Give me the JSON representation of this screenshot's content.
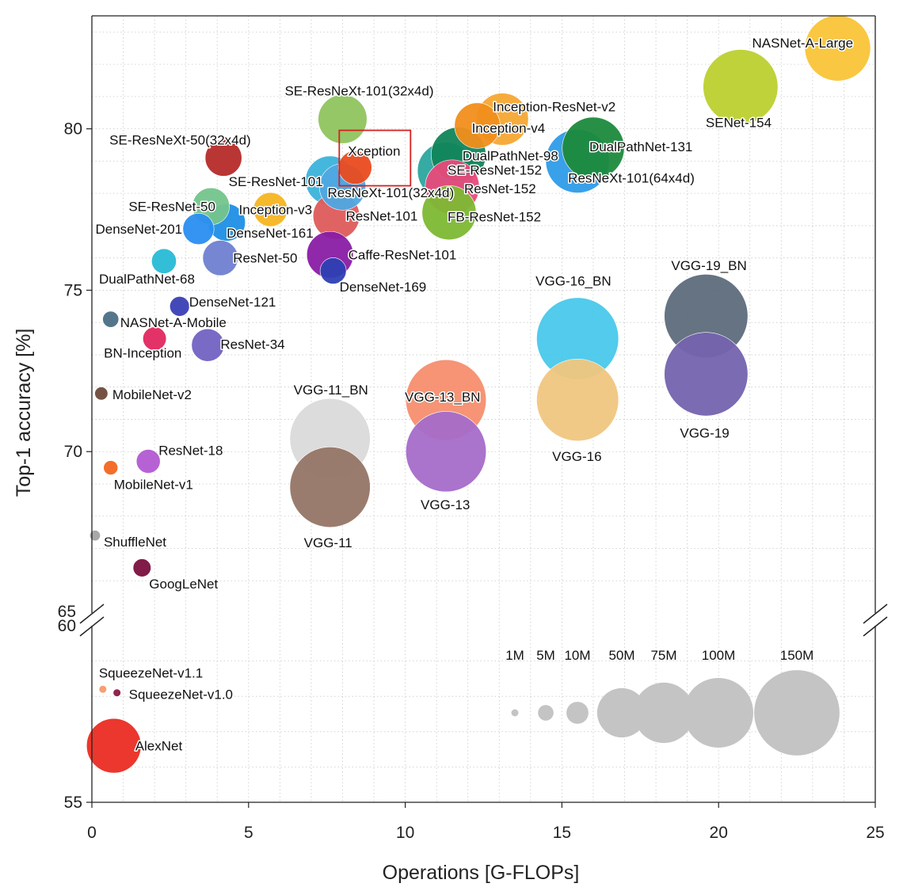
{
  "chart_data": {
    "type": "scatter",
    "xlabel": "Operations [G-FLOPs]",
    "ylabel": "Top-1 accuracy [%]",
    "xlim": [
      0,
      25
    ],
    "ylim_upper": [
      65,
      83.5
    ],
    "ylim_lower": [
      55,
      60
    ],
    "x_ticks": [
      "0",
      "5",
      "10",
      "15",
      "20",
      "25"
    ],
    "y_ticks_upper": [
      "70",
      "75",
      "80"
    ],
    "y_ticks_lower": [
      "55"
    ],
    "y_break_labels": [
      "65",
      "60"
    ],
    "grid": true,
    "highlight": "Xception",
    "size_legend": [
      {
        "label": "1M",
        "params": 1
      },
      {
        "label": "5M",
        "params": 5
      },
      {
        "label": "10M",
        "params": 10
      },
      {
        "label": "50M",
        "params": 50
      },
      {
        "label": "75M",
        "params": 75
      },
      {
        "label": "100M",
        "params": 100
      },
      {
        "label": "150M",
        "params": 150
      }
    ],
    "points": [
      {
        "name": "NASNet-A-Large",
        "x": 23.8,
        "y": 82.5,
        "params": 88.9,
        "color": "#F9C437"
      },
      {
        "name": "SENet-154",
        "x": 20.7,
        "y": 81.3,
        "params": 115.1,
        "color": "#BCD02F"
      },
      {
        "name": "SE-ResNeXt-101(32x4d)",
        "x": 8.0,
        "y": 80.3,
        "params": 49,
        "color": "#8FC45F"
      },
      {
        "name": "Inception-ResNet-v2",
        "x": 13.1,
        "y": 80.3,
        "params": 55.8,
        "color": "#F5A833"
      },
      {
        "name": "Inception-v4",
        "x": 12.3,
        "y": 80.1,
        "params": 42.7,
        "color": "#F18E1B"
      },
      {
        "name": "DualPathNet-131",
        "x": 16.0,
        "y": 79.4,
        "params": 79.3,
        "color": "#1C8A3C"
      },
      {
        "name": "DualPathNet-98",
        "x": 11.7,
        "y": 79.2,
        "params": 61.6,
        "color": "#11855A"
      },
      {
        "name": "SE-ResNeXt-50(32x4d)",
        "x": 4.2,
        "y": 79.1,
        "params": 27.6,
        "color": "#B52B2A"
      },
      {
        "name": "ResNeXt-101(64x4d)",
        "x": 15.5,
        "y": 79.0,
        "params": 83.5,
        "color": "#2E9CE8"
      },
      {
        "name": "Xception",
        "x": 8.4,
        "y": 78.8,
        "params": 22.9,
        "color": "#EA4B1F"
      },
      {
        "name": "SE-ResNet-152",
        "x": 11.3,
        "y": 78.7,
        "params": 66.8,
        "color": "#2AA79F"
      },
      {
        "name": "SE-ResNet-101",
        "x": 7.6,
        "y": 78.4,
        "params": 49.3,
        "color": "#3BB3DA"
      },
      {
        "name": "ResNeXt-101(32x4d)",
        "x": 8.0,
        "y": 78.2,
        "params": 44.2,
        "color": "#4FA7E2"
      },
      {
        "name": "ResNet-152",
        "x": 11.5,
        "y": 78.2,
        "params": 60.2,
        "color": "#E84A7B"
      },
      {
        "name": "SE-ResNet-50",
        "x": 3.8,
        "y": 77.6,
        "params": 28.1,
        "color": "#74C48C"
      },
      {
        "name": "Inception-v3",
        "x": 5.7,
        "y": 77.5,
        "params": 23.8,
        "color": "#F5B521"
      },
      {
        "name": "FB-ResNet-152",
        "x": 11.4,
        "y": 77.4,
        "params": 60.2,
        "color": "#7DB833"
      },
      {
        "name": "ResNet-101",
        "x": 7.8,
        "y": 77.3,
        "params": 44.5,
        "color": "#DE5B5B"
      },
      {
        "name": "DenseNet-161",
        "x": 4.3,
        "y": 77.1,
        "params": 28.7,
        "color": "#1F8FE5"
      },
      {
        "name": "DenseNet-201",
        "x": 3.4,
        "y": 76.9,
        "params": 20,
        "color": "#2A8EF0"
      },
      {
        "name": "Caffe-ResNet-101",
        "x": 7.6,
        "y": 76.1,
        "params": 44.5,
        "color": "#8A1CA5"
      },
      {
        "name": "ResNet-50",
        "x": 4.1,
        "y": 76.0,
        "params": 25.6,
        "color": "#6F7FD0"
      },
      {
        "name": "DualPathNet-68",
        "x": 2.3,
        "y": 75.9,
        "params": 12.6,
        "color": "#28BAD6"
      },
      {
        "name": "DenseNet-169",
        "x": 7.7,
        "y": 75.6,
        "params": 14.1,
        "color": "#2E3FB3"
      },
      {
        "name": "DenseNet-121",
        "x": 2.8,
        "y": 74.5,
        "params": 8,
        "color": "#3A3FB5"
      },
      {
        "name": "NASNet-A-Mobile",
        "x": 0.6,
        "y": 74.1,
        "params": 5.3,
        "color": "#4A6F86"
      },
      {
        "name": "BN-Inception",
        "x": 2.0,
        "y": 73.5,
        "params": 11.3,
        "color": "#E2275F"
      },
      {
        "name": "ResNet-34",
        "x": 3.7,
        "y": 73.3,
        "params": 21.8,
        "color": "#7262C3"
      },
      {
        "name": "MobileNet-v2",
        "x": 0.3,
        "y": 71.8,
        "params": 3.5,
        "color": "#6E4A3A"
      },
      {
        "name": "ResNet-18",
        "x": 1.8,
        "y": 69.7,
        "params": 11.7,
        "color": "#B25AD2"
      },
      {
        "name": "MobileNet-v1",
        "x": 0.6,
        "y": 69.5,
        "params": 4.2,
        "color": "#F2661F"
      },
      {
        "name": "ShuffleNet",
        "x": 0.1,
        "y": 67.4,
        "params": 2.3,
        "color": "#A3A3A3"
      },
      {
        "name": "GoogLeNet",
        "x": 1.6,
        "y": 66.4,
        "params": 6.6,
        "color": "#7A0F3E"
      },
      {
        "name": "VGG-19_BN",
        "x": 19.6,
        "y": 74.2,
        "params": 143.7,
        "color": "#5D6C7C"
      },
      {
        "name": "VGG-19",
        "x": 19.6,
        "y": 72.4,
        "params": 143.7,
        "color": "#7463AE"
      },
      {
        "name": "VGG-16_BN",
        "x": 15.5,
        "y": 73.5,
        "params": 138.4,
        "color": "#49C8EB"
      },
      {
        "name": "VGG-16",
        "x": 15.5,
        "y": 71.6,
        "params": 138.4,
        "color": "#F0C67F"
      },
      {
        "name": "VGG-13_BN",
        "x": 11.3,
        "y": 71.6,
        "params": 133,
        "color": "#F58E6E"
      },
      {
        "name": "VGG-13",
        "x": 11.3,
        "y": 70.0,
        "params": 133,
        "color": "#A56BC9"
      },
      {
        "name": "VGG-11_BN",
        "x": 7.6,
        "y": 70.4,
        "params": 132.9,
        "color": "#DADADA"
      },
      {
        "name": "VGG-11",
        "x": 7.6,
        "y": 68.9,
        "params": 132.9,
        "color": "#957566"
      },
      {
        "name": "SqueezeNet-v1.1",
        "x": 0.35,
        "y": 58.2,
        "params": 1.2,
        "color": "#F59A6A"
      },
      {
        "name": "SqueezeNet-v1.0",
        "x": 0.8,
        "y": 58.1,
        "params": 1.2,
        "color": "#8B1744"
      },
      {
        "name": "AlexNet",
        "x": 0.7,
        "y": 56.6,
        "params": 61.1,
        "color": "#EA2C22"
      }
    ]
  }
}
